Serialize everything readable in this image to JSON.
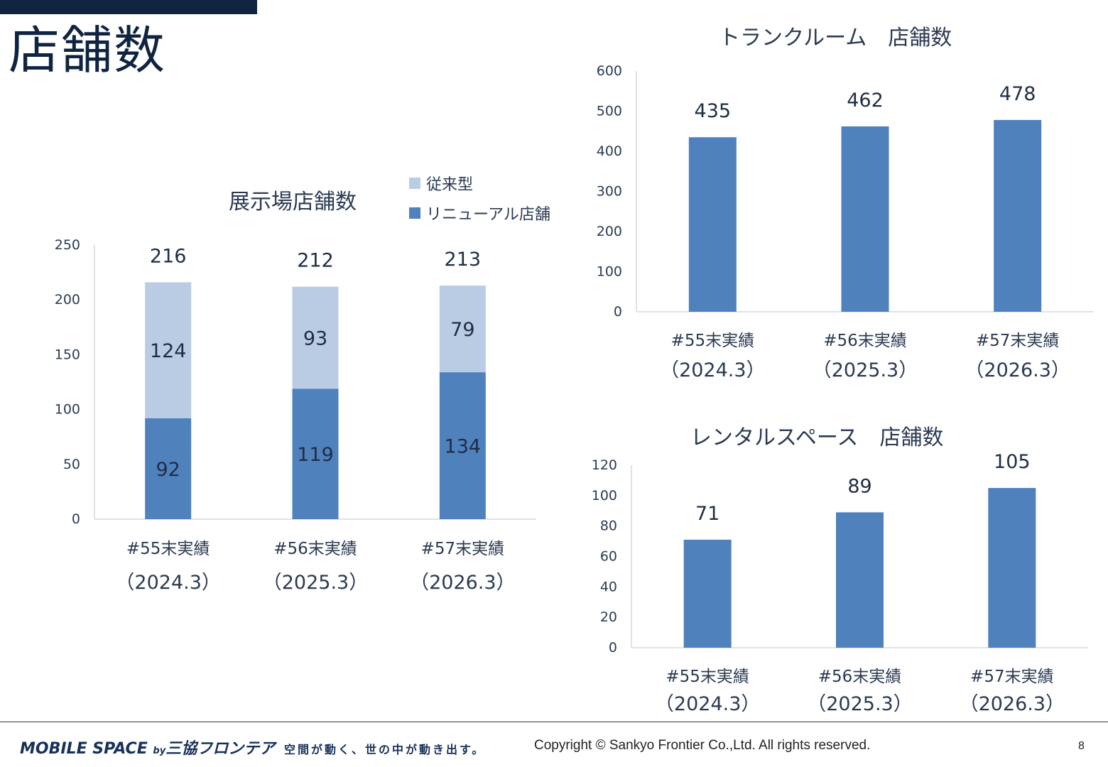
{
  "page": {
    "title": "店舗数",
    "accent_color": "#0f2440",
    "page_number": "8"
  },
  "footer": {
    "logo_main": "MOBILE SPACE",
    "logo_by": "by",
    "logo_brand": "三協フロンテア",
    "tagline": "空間が動く、世の中が動き出す。",
    "copyright": "Copyright © Sankyo Frontier Co.,Ltd. All rights reserved."
  },
  "legend": {
    "items": [
      {
        "label": "従来型",
        "color": "#b9cce4"
      },
      {
        "label": "リニューアル店舗",
        "color": "#4f81bd"
      }
    ]
  },
  "chart_data": [
    {
      "id": "showroom",
      "type": "bar",
      "stacked": true,
      "title": "展示場店舗数",
      "categories": [
        [
          "#55末実績",
          "（2024.3）"
        ],
        [
          "#56末実績",
          "（2025.3）"
        ],
        [
          "#57末実績",
          "（2026.3）"
        ]
      ],
      "series": [
        {
          "name": "リニューアル店舗",
          "values": [
            92,
            119,
            134
          ],
          "color": "#4f81bd"
        },
        {
          "name": "従来型",
          "values": [
            124,
            93,
            79
          ],
          "color": "#b9cce4"
        }
      ],
      "totals": [
        216,
        212,
        213
      ],
      "ylim": [
        0,
        250
      ],
      "yticks": [
        0,
        50,
        100,
        150,
        200,
        250
      ],
      "legend": "top-right",
      "grid": false
    },
    {
      "id": "trunkroom",
      "type": "bar",
      "title": "トランクルーム　店舗数",
      "categories": [
        [
          "#55末実績",
          "（2024.3）"
        ],
        [
          "#56末実績",
          "（2025.3）"
        ],
        [
          "#57末実績",
          "（2026.3）"
        ]
      ],
      "series": [
        {
          "values": [
            435,
            462,
            478
          ],
          "color": "#4f81bd"
        }
      ],
      "ylim": [
        0,
        600
      ],
      "yticks": [
        0,
        100,
        200,
        300,
        400,
        500,
        600
      ],
      "grid": false
    },
    {
      "id": "rentalspace",
      "type": "bar",
      "title": "レンタルスペース　店舗数",
      "categories": [
        [
          "#55末実績",
          "（2024.3）"
        ],
        [
          "#56末実績",
          "（2025.3）"
        ],
        [
          "#57末実績",
          "（2026.3）"
        ]
      ],
      "series": [
        {
          "values": [
            71,
            89,
            105
          ],
          "color": "#4f81bd"
        }
      ],
      "ylim": [
        0,
        120
      ],
      "yticks": [
        0,
        20,
        40,
        60,
        80,
        100,
        120
      ],
      "grid": false
    }
  ]
}
